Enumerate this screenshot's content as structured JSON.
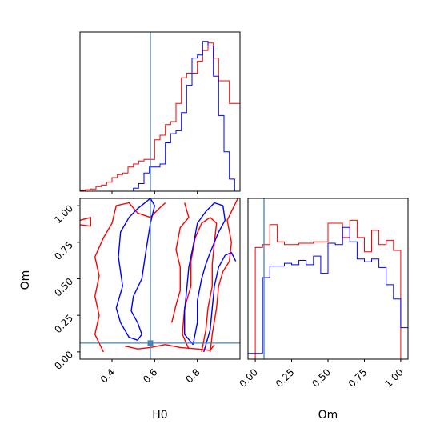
{
  "chart_data": [
    {
      "panel": "H0-marginal",
      "type": "histogram-step",
      "xlim": [
        0.25,
        1.0
      ],
      "truth": 0.58,
      "series": [
        {
          "color": "#ff0000",
          "bins": [
            0.25,
            0.275,
            0.3,
            0.325,
            0.35,
            0.375,
            0.4,
            0.425,
            0.45,
            0.475,
            0.5,
            0.525,
            0.55,
            0.575,
            0.6,
            0.625,
            0.65,
            0.675,
            0.7,
            0.725,
            0.75,
            0.775,
            0.8,
            0.825,
            0.85,
            0.875,
            0.9,
            0.925,
            0.95,
            0.975,
            1.0
          ],
          "values": [
            0.5,
            1,
            1.5,
            3,
            4,
            6,
            9,
            11,
            12,
            16,
            18,
            20,
            21,
            21,
            34,
            37,
            44,
            46,
            58,
            75,
            78,
            78,
            86,
            93,
            98,
            88,
            73,
            73,
            58,
            58
          ]
        },
        {
          "color": "#0000ff",
          "bins": [
            0.5,
            0.525,
            0.55,
            0.575,
            0.6,
            0.625,
            0.65,
            0.675,
            0.7,
            0.725,
            0.75,
            0.775,
            0.8,
            0.825,
            0.85,
            0.875,
            0.9,
            0.925,
            0.95,
            0.975
          ],
          "values": [
            2,
            5,
            12,
            16,
            16,
            18,
            32,
            38,
            40,
            52,
            70,
            88,
            90,
            99,
            96,
            76,
            50,
            26,
            8
          ]
        }
      ]
    },
    {
      "panel": "Om-H0-joint",
      "type": "contour",
      "xlabel": "H0",
      "ylabel": "Om",
      "xlim": [
        0.25,
        1.0
      ],
      "ylim": [
        -0.05,
        1.05
      ],
      "xticks": [
        "0.4",
        "0.6",
        "0.8"
      ],
      "yticks": [
        "0.00",
        "0.25",
        "0.50",
        "0.75",
        "1.00"
      ],
      "truth": [
        0.58,
        0.06
      ],
      "contours": [
        {
          "color": "#ff0000",
          "points": [
            [
              0.46,
              0.04
            ],
            [
              0.52,
              0.02
            ],
            [
              0.58,
              0.03
            ],
            [
              0.65,
              0.05
            ],
            [
              0.72,
              0.03
            ],
            [
              0.8,
              0.02
            ],
            [
              0.86,
              0.01
            ],
            [
              0.88,
              0.05
            ]
          ]
        },
        {
          "color": "#ff0000",
          "points": [
            [
              0.86,
              0.0
            ],
            [
              0.87,
              0.12
            ],
            [
              0.89,
              0.3
            ],
            [
              0.9,
              0.45
            ],
            [
              0.92,
              0.55
            ],
            [
              0.95,
              0.62
            ],
            [
              0.96,
              0.75
            ],
            [
              0.94,
              0.9
            ],
            [
              0.99,
              1.05
            ]
          ]
        },
        {
          "color": "#ff0000",
          "points": [
            [
              0.82,
              0.0
            ],
            [
              0.84,
              0.15
            ],
            [
              0.85,
              0.3
            ],
            [
              0.87,
              0.45
            ],
            [
              0.87,
              0.6
            ],
            [
              0.88,
              0.75
            ],
            [
              0.89,
              0.88
            ],
            [
              0.86,
              0.92
            ],
            [
              0.82,
              0.88
            ],
            [
              0.79,
              0.78
            ],
            [
              0.77,
              0.62
            ],
            [
              0.77,
              0.45
            ],
            [
              0.74,
              0.3
            ],
            [
              0.73,
              0.12
            ],
            [
              0.76,
              0.02
            ]
          ]
        },
        {
          "color": "#ff0000",
          "points": [
            [
              0.36,
              0.0
            ],
            [
              0.32,
              0.12
            ],
            [
              0.34,
              0.25
            ],
            [
              0.32,
              0.38
            ],
            [
              0.34,
              0.52
            ],
            [
              0.32,
              0.65
            ],
            [
              0.36,
              0.78
            ],
            [
              0.4,
              0.88
            ],
            [
              0.42,
              1.0
            ],
            [
              0.48,
              1.02
            ],
            [
              0.52,
              0.95
            ],
            [
              0.58,
              0.92
            ],
            [
              0.62,
              0.98
            ],
            [
              0.65,
              1.02
            ]
          ]
        },
        {
          "color": "#ff0000",
          "points": [
            [
              0.68,
              0.2
            ],
            [
              0.7,
              0.32
            ],
            [
              0.72,
              0.42
            ],
            [
              0.72,
              0.58
            ],
            [
              0.7,
              0.7
            ],
            [
              0.72,
              0.85
            ],
            [
              0.76,
              0.92
            ],
            [
              0.74,
              1.02
            ]
          ]
        },
        {
          "color": "#ff0000",
          "points": [
            [
              0.25,
              0.9
            ],
            [
              0.3,
              0.92
            ],
            [
              0.3,
              0.86
            ],
            [
              0.25,
              0.87
            ]
          ]
        },
        {
          "color": "#0000ff",
          "points": [
            [
              0.42,
              0.3
            ],
            [
              0.44,
              0.2
            ],
            [
              0.46,
              0.15
            ],
            [
              0.48,
              0.1
            ],
            [
              0.52,
              0.08
            ],
            [
              0.54,
              0.12
            ],
            [
              0.52,
              0.2
            ],
            [
              0.49,
              0.28
            ],
            [
              0.5,
              0.38
            ],
            [
              0.54,
              0.5
            ],
            [
              0.56,
              0.7
            ],
            [
              0.58,
              0.88
            ],
            [
              0.6,
              1.0
            ],
            [
              0.58,
              1.05
            ],
            [
              0.52,
              0.98
            ],
            [
              0.48,
              0.92
            ],
            [
              0.44,
              0.82
            ],
            [
              0.43,
              0.65
            ],
            [
              0.45,
              0.45
            ],
            [
              0.42,
              0.3
            ]
          ]
        },
        {
          "color": "#0000ff",
          "points": [
            [
              0.78,
              0.05
            ],
            [
              0.8,
              0.2
            ],
            [
              0.8,
              0.35
            ],
            [
              0.82,
              0.5
            ],
            [
              0.84,
              0.6
            ],
            [
              0.86,
              0.68
            ],
            [
              0.9,
              0.82
            ],
            [
              0.93,
              0.9
            ],
            [
              0.92,
              1.0
            ],
            [
              0.88,
              1.02
            ],
            [
              0.84,
              0.96
            ],
            [
              0.8,
              0.88
            ],
            [
              0.78,
              0.72
            ],
            [
              0.76,
              0.58
            ],
            [
              0.75,
              0.42
            ],
            [
              0.74,
              0.28
            ],
            [
              0.74,
              0.12
            ],
            [
              0.78,
              0.05
            ]
          ]
        },
        {
          "color": "#0000ff",
          "points": [
            [
              0.83,
              0.0
            ],
            [
              0.86,
              0.15
            ],
            [
              0.87,
              0.3
            ],
            [
              0.88,
              0.45
            ],
            [
              0.9,
              0.58
            ],
            [
              0.93,
              0.66
            ],
            [
              0.96,
              0.68
            ],
            [
              0.98,
              0.62
            ]
          ]
        }
      ]
    },
    {
      "panel": "Om-marginal",
      "type": "histogram-step",
      "xlabel": "Om",
      "xlim": [
        -0.05,
        1.05
      ],
      "xticks": [
        "0.00",
        "0.25",
        "0.50",
        "0.75",
        "1.00"
      ],
      "truth": 0.06,
      "series": [
        {
          "color": "#ff0000",
          "bins": [
            0.0,
            0.05,
            0.1,
            0.15,
            0.2,
            0.25,
            0.3,
            0.35,
            0.4,
            0.45,
            0.5,
            0.55,
            0.6,
            0.65,
            0.7,
            0.75,
            0.8,
            0.85,
            0.9,
            0.95,
            1.0
          ],
          "values": [
            78,
            80,
            94,
            82,
            80,
            80,
            81,
            81,
            82,
            82,
            95,
            95,
            85,
            97,
            85,
            75,
            90,
            80,
            83,
            76
          ]
        },
        {
          "color": "#0000ff",
          "bins": [
            -0.05,
            0.0,
            0.05,
            0.1,
            0.15,
            0.2,
            0.25,
            0.3,
            0.35,
            0.4,
            0.45,
            0.5,
            0.55,
            0.6,
            0.65,
            0.7,
            0.75,
            0.8,
            0.85,
            0.9,
            0.95,
            1.0,
            1.05
          ],
          "values": [
            4,
            4,
            57,
            65,
            65,
            67,
            66,
            69,
            66,
            72,
            60,
            81,
            80,
            92,
            82,
            70,
            68,
            70,
            64,
            52,
            42,
            22
          ]
        }
      ]
    }
  ]
}
